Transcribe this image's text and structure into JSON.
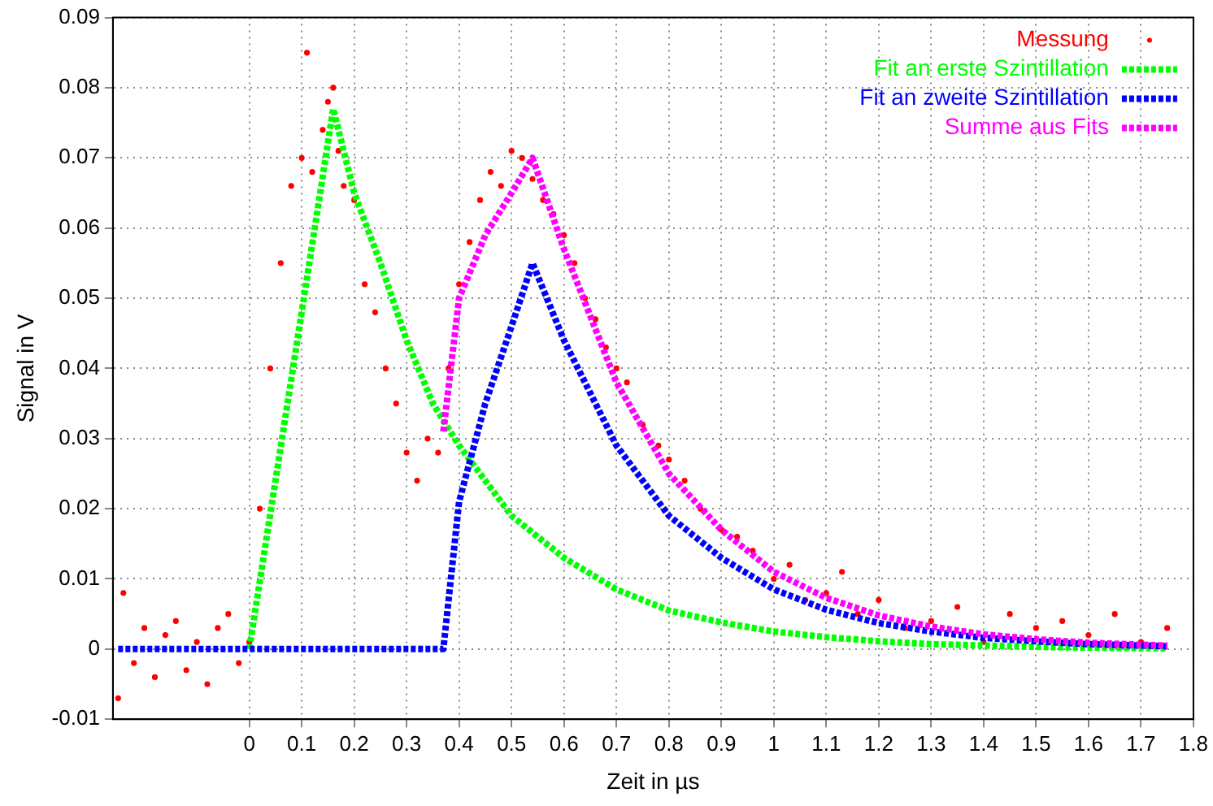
{
  "chart_data": {
    "type": "scatter",
    "xlabel": "Zeit in µs",
    "ylabel": "Signal in V",
    "xlim": [
      -0.26,
      1.8
    ],
    "ylim": [
      -0.01,
      0.09
    ],
    "xticks": [
      0,
      0.1,
      0.2,
      0.3,
      0.4,
      0.5,
      0.6,
      0.7,
      0.8,
      0.9,
      1,
      1.1,
      1.2,
      1.3,
      1.4,
      1.5,
      1.6,
      1.7,
      1.8
    ],
    "yticks": [
      -0.01,
      0,
      0.01,
      0.02,
      0.03,
      0.04,
      0.05,
      0.06,
      0.07,
      0.08,
      0.09
    ],
    "grid": true,
    "legend": "top right",
    "series": [
      {
        "name": "Messung",
        "type": "scatter",
        "marker": "circle",
        "color": "#ff0000",
        "x": [
          -0.25,
          -0.24,
          -0.22,
          -0.2,
          -0.18,
          -0.16,
          -0.14,
          -0.12,
          -0.1,
          -0.08,
          -0.06,
          -0.04,
          -0.02,
          0,
          0.02,
          0.04,
          0.06,
          0.08,
          0.1,
          0.11,
          0.12,
          0.14,
          0.15,
          0.16,
          0.17,
          0.18,
          0.2,
          0.22,
          0.24,
          0.26,
          0.28,
          0.3,
          0.32,
          0.34,
          0.36,
          0.38,
          0.4,
          0.42,
          0.44,
          0.46,
          0.48,
          0.5,
          0.52,
          0.54,
          0.56,
          0.58,
          0.6,
          0.62,
          0.64,
          0.66,
          0.68,
          0.7,
          0.72,
          0.75,
          0.78,
          0.8,
          0.83,
          0.86,
          0.9,
          0.93,
          0.96,
          1,
          1.03,
          1.06,
          1.1,
          1.13,
          1.16,
          1.2,
          1.25,
          1.3,
          1.35,
          1.4,
          1.45,
          1.5,
          1.55,
          1.6,
          1.65,
          1.7,
          1.75
        ],
        "values": [
          -0.007,
          0.008,
          -0.002,
          0.003,
          -0.004,
          0.002,
          0.004,
          -0.003,
          0.001,
          -0.005,
          0.003,
          0.005,
          -0.002,
          0.001,
          0.02,
          0.04,
          0.055,
          0.066,
          0.07,
          0.085,
          0.068,
          0.074,
          0.078,
          0.08,
          0.071,
          0.066,
          0.064,
          0.052,
          0.048,
          0.04,
          0.035,
          0.028,
          0.024,
          0.03,
          0.028,
          0.04,
          0.052,
          0.058,
          0.064,
          0.068,
          0.066,
          0.071,
          0.07,
          0.067,
          0.064,
          0.062,
          0.059,
          0.055,
          0.05,
          0.047,
          0.043,
          0.04,
          0.038,
          0.032,
          0.029,
          0.027,
          0.024,
          0.02,
          0.017,
          0.016,
          0.014,
          0.01,
          0.012,
          0.007,
          0.008,
          0.011,
          0.005,
          0.007,
          0.003,
          0.004,
          0.006,
          0.001,
          0.005,
          0.003,
          0.004,
          0.002,
          0.005,
          0.001,
          0.003
        ]
      },
      {
        "name": "Fit an erste Szintillation",
        "type": "line",
        "marker": "none",
        "line_style": "dotted",
        "color": "#00ff00",
        "x": [
          0,
          0.05,
          0.1,
          0.16,
          0.2,
          0.25,
          0.3,
          0.35,
          0.4,
          0.45,
          0.5,
          0.55,
          0.6,
          0.7,
          0.8,
          0.9,
          1,
          1.1,
          1.2,
          1.3,
          1.4,
          1.5,
          1.6,
          1.75
        ],
        "values": [
          0,
          0.024,
          0.048,
          0.077,
          0.065,
          0.055,
          0.044,
          0.035,
          0.029,
          0.024,
          0.019,
          0.016,
          0.013,
          0.0085,
          0.0055,
          0.0038,
          0.0025,
          0.0017,
          0.0011,
          0.0007,
          0.0005,
          0.0003,
          0.0002,
          0.0001
        ]
      },
      {
        "name": "Fit an zweite Szintillation",
        "type": "line",
        "marker": "none",
        "line_style": "dotted",
        "color": "#0000ff",
        "x": [
          -0.25,
          0.37,
          0.4,
          0.45,
          0.5,
          0.54,
          0.6,
          0.7,
          0.8,
          0.9,
          1,
          1.1,
          1.2,
          1.3,
          1.4,
          1.5,
          1.6,
          1.75
        ],
        "values": [
          0,
          0,
          0.021,
          0.035,
          0.046,
          0.055,
          0.044,
          0.029,
          0.019,
          0.013,
          0.0085,
          0.0056,
          0.0037,
          0.0025,
          0.0016,
          0.0011,
          0.0007,
          0.0004
        ]
      },
      {
        "name": "Summe aus Fits",
        "type": "line",
        "marker": "none",
        "line_style": "dotted",
        "color": "#ff00ff",
        "x": [
          0.37,
          0.4,
          0.45,
          0.5,
          0.54,
          0.6,
          0.7,
          0.8,
          0.9,
          1,
          1.1,
          1.2,
          1.3,
          1.4,
          1.5,
          1.6,
          1.75
        ],
        "values": [
          0.031,
          0.05,
          0.059,
          0.065,
          0.07,
          0.057,
          0.038,
          0.025,
          0.017,
          0.011,
          0.0073,
          0.0048,
          0.0032,
          0.0021,
          0.0014,
          0.0009,
          0.0005
        ]
      }
    ]
  }
}
